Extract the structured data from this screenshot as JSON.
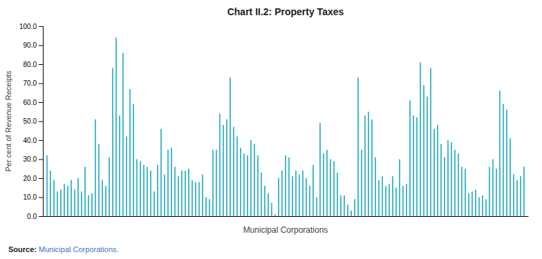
{
  "chart_data": {
    "type": "bar",
    "title": "Chart II.2: Property Taxes",
    "xlabel": "Municipal Corporations",
    "ylabel": "Per cent of Revenue Receipts",
    "annotations": [
      "Source:",
      " Municipal Corporations."
    ],
    "values": [
      32,
      24,
      19,
      13,
      14,
      17,
      16,
      19,
      14,
      20,
      13,
      26,
      11,
      12,
      51,
      38,
      19,
      16,
      31,
      78,
      94,
      53,
      86,
      42,
      67,
      59,
      30,
      29,
      27,
      26,
      24,
      13,
      27,
      46,
      22,
      35,
      36,
      26,
      21,
      24,
      24,
      25,
      19,
      18,
      18,
      22,
      10,
      9,
      35,
      35,
      54,
      48,
      51,
      73,
      47,
      42,
      36,
      33,
      32,
      40,
      38,
      32,
      23,
      16,
      12,
      7,
      1,
      20,
      24,
      32,
      31,
      21,
      24,
      22,
      24,
      20,
      16,
      27,
      10,
      49,
      33,
      35,
      30,
      29,
      23,
      11,
      11,
      6,
      3,
      9,
      73,
      35,
      53,
      55,
      51,
      31,
      19,
      21,
      16,
      17,
      21,
      15,
      30,
      16,
      17,
      61,
      53,
      52,
      81,
      69,
      63,
      78,
      46,
      48,
      38,
      31,
      40,
      39,
      35,
      33,
      26,
      25,
      12,
      13,
      14,
      10,
      11,
      9,
      26,
      30,
      25,
      66,
      59,
      56,
      41,
      22,
      19,
      21,
      26
    ],
    "color": "#4ab8cc",
    "ylim": [
      0,
      100
    ],
    "yticks": [
      {
        "value": 0,
        "label": "0.0"
      },
      {
        "value": 10,
        "label": "10.0"
      },
      {
        "value": 20,
        "label": "20.0"
      },
      {
        "value": 30,
        "label": "30.0"
      },
      {
        "value": 40,
        "label": "40.0"
      },
      {
        "value": 50,
        "label": "50.0"
      },
      {
        "value": 60,
        "label": "60.0"
      },
      {
        "value": 70,
        "label": "70.0"
      },
      {
        "value": 80,
        "label": "80.0"
      },
      {
        "value": 90,
        "label": "90.0"
      },
      {
        "value": 100,
        "label": "100.0"
      }
    ],
    "grid": false,
    "tick_labels": "y"
  }
}
